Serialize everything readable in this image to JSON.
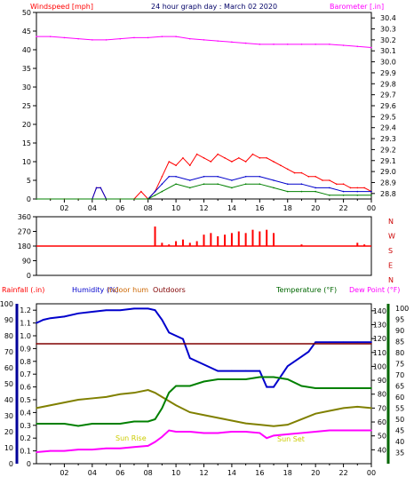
{
  "header": {
    "left": "Windspeed [mph]",
    "center": "24 hour graph day : March 02 2020",
    "right": "Barometer [.in]"
  },
  "bottom_header": {
    "rainfall": "Rainfall (.in)",
    "humidity": "Humidity (%)",
    "indoor": "Indoor hum",
    "outdoors": "Outdoors",
    "temperature": "Temperature (°F)",
    "dewpoint": "Dew Point (°F)"
  },
  "annotations": {
    "sunrise": "Sun Rise",
    "sunset": "Sun Set"
  },
  "colors": {
    "wind": "#ff0000",
    "gust": "#0000cc",
    "avgwind": "#008000",
    "barometer": "#ff00ff",
    "direction": "#ff0000",
    "humidity": "#0000cc",
    "indoor": "#800000",
    "temperature": "#808000",
    "dewpoint": "#008000",
    "rain": "#ff00ff",
    "grid": "#000000"
  },
  "chart_data": [
    {
      "type": "line",
      "name": "wind-barometer",
      "xlabel": "",
      "x_ticks": [
        "02",
        "04",
        "06",
        "08",
        "10",
        "12",
        "14",
        "16",
        "18",
        "20",
        "22",
        "00"
      ],
      "y_left": {
        "label": "Windspeed [mph]",
        "ticks": [
          0,
          5,
          10,
          15,
          20,
          25,
          30,
          35,
          40,
          45,
          50
        ],
        "range": [
          0,
          50
        ]
      },
      "y_right": {
        "label": "Barometer [.in]",
        "ticks": [
          28.8,
          28.9,
          29.0,
          29.1,
          29.2,
          29.3,
          29.4,
          29.5,
          29.6,
          29.7,
          29.8,
          29.9,
          30.0,
          30.1,
          30.2,
          30.3,
          30.4
        ],
        "range": [
          28.75,
          30.45
        ]
      },
      "series": [
        {
          "name": "Windspeed",
          "hours": [
            0,
            1,
            2,
            3,
            4,
            4.3,
            4.6,
            5,
            6,
            7,
            7.5,
            8,
            8.5,
            9,
            9.5,
            10,
            10.5,
            11,
            11.5,
            12,
            12.5,
            13,
            13.5,
            14,
            14.5,
            15,
            15.5,
            16,
            16.5,
            17,
            17.5,
            18,
            18.5,
            19,
            19.5,
            20,
            20.5,
            21,
            21.5,
            22,
            22.5,
            23,
            23.5,
            24
          ],
          "values": [
            0,
            0,
            0,
            0,
            0,
            3,
            3,
            0,
            0,
            0,
            2,
            0,
            2,
            6,
            10,
            9,
            11,
            9,
            12,
            11,
            10,
            12,
            11,
            10,
            11,
            10,
            12,
            11,
            11,
            10,
            9,
            8,
            7,
            7,
            6,
            6,
            5,
            5,
            4,
            4,
            3,
            3,
            3,
            2
          ]
        },
        {
          "name": "Gust",
          "hours": [
            0,
            4,
            4.3,
            4.6,
            5,
            8,
            8.5,
            9,
            9.5,
            10,
            11,
            12,
            13,
            14,
            15,
            16,
            17,
            18,
            19,
            20,
            21,
            22,
            23,
            24
          ],
          "values": [
            0,
            0,
            3,
            3,
            0,
            0,
            2,
            4,
            6,
            6,
            5,
            6,
            6,
            5,
            6,
            6,
            5,
            4,
            4,
            3,
            3,
            2,
            2,
            2
          ]
        },
        {
          "name": "Average",
          "hours": [
            0,
            8,
            8.5,
            9,
            10,
            11,
            12,
            13,
            14,
            15,
            16,
            17,
            18,
            19,
            20,
            21,
            22,
            23,
            24
          ],
          "values": [
            0,
            0,
            1,
            2,
            4,
            3,
            4,
            4,
            3,
            4,
            4,
            3,
            2,
            2,
            2,
            1,
            1,
            1,
            1
          ]
        },
        {
          "name": "Barometer",
          "hours": [
            0,
            1,
            2,
            3,
            4,
            5,
            6,
            7,
            8,
            9,
            10,
            11,
            12,
            13,
            14,
            15,
            16,
            17,
            18,
            19,
            20,
            21,
            22,
            23,
            24
          ],
          "values": [
            30.23,
            30.23,
            30.22,
            30.21,
            30.2,
            30.2,
            30.21,
            30.22,
            30.22,
            30.23,
            30.23,
            30.21,
            30.2,
            30.19,
            30.18,
            30.17,
            30.16,
            30.16,
            30.16,
            30.16,
            30.16,
            30.16,
            30.15,
            30.14,
            30.13
          ]
        }
      ]
    },
    {
      "type": "scatter",
      "name": "wind-direction",
      "y_left": {
        "ticks": [
          0,
          90,
          180,
          270,
          360
        ],
        "range": [
          0,
          360
        ]
      },
      "y_right": {
        "labels": [
          "N",
          "W",
          "S",
          "E",
          "N"
        ]
      },
      "baseline": 180,
      "hours": [
        8.5,
        9,
        9.5,
        10,
        10.5,
        11,
        11.5,
        12,
        12.5,
        13,
        13.5,
        14,
        14.5,
        15,
        15.5,
        16,
        16.5,
        17,
        19,
        23,
        23.5
      ],
      "values": [
        300,
        200,
        190,
        210,
        220,
        200,
        210,
        250,
        260,
        240,
        250,
        260,
        270,
        260,
        280,
        270,
        280,
        260,
        190,
        200,
        190
      ]
    },
    {
      "type": "line",
      "name": "temperature-humidity-rain",
      "x_ticks": [
        "02",
        "04",
        "06",
        "08",
        "10",
        "12",
        "14",
        "16",
        "18",
        "20",
        "22",
        "00"
      ],
      "y_left_rain": {
        "label": "Rainfall (.in)",
        "ticks": [
          0,
          0.1,
          0.2,
          0.3,
          0.4,
          0.5,
          0.6,
          0.7,
          0.8,
          0.9,
          1.0,
          1.1,
          1.2
        ],
        "range": [
          0,
          1.25
        ]
      },
      "y_left_humidity": {
        "label": "Humidity (%)",
        "ticks": [
          0,
          10,
          20,
          30,
          40,
          50,
          60,
          70,
          80,
          90,
          100
        ],
        "range": [
          0,
          100
        ]
      },
      "y_right_temp": {
        "label": "Temperature (°F)",
        "ticks": [
          40,
          50,
          60,
          70,
          80,
          90,
          100,
          110,
          120,
          130,
          140
        ],
        "range": [
          30,
          145
        ]
      },
      "y_right_dew": {
        "label": "Dew Point (°F)",
        "ticks": [
          35,
          40,
          45,
          50,
          55,
          60,
          65,
          70,
          75,
          80,
          85,
          90,
          95,
          100
        ],
        "range": [
          30,
          102
        ]
      },
      "series": [
        {
          "name": "Humidity",
          "hours": [
            0,
            0.5,
            1,
            2,
            3,
            4,
            5,
            6,
            7,
            8,
            8.5,
            9,
            9.5,
            10,
            10.5,
            11,
            12,
            13,
            14,
            15,
            16,
            16.5,
            17,
            18,
            19,
            19.5,
            20,
            21,
            22,
            23,
            24
          ],
          "values": [
            88,
            90,
            91,
            92,
            94,
            95,
            96,
            96,
            97,
            97,
            96,
            90,
            82,
            80,
            78,
            66,
            62,
            58,
            58,
            58,
            58,
            48,
            48,
            61,
            67,
            70,
            76,
            76,
            76,
            76,
            76
          ]
        },
        {
          "name": "Indoor",
          "hours": [
            0,
            24
          ],
          "values": [
            75,
            75
          ]
        },
        {
          "name": "Temperature",
          "hours": [
            0,
            1,
            2,
            3,
            4,
            5,
            6,
            7,
            8,
            8.5,
            9,
            10,
            11,
            12,
            13,
            14,
            15,
            16,
            17,
            18,
            19,
            20,
            21,
            22,
            23,
            24
          ],
          "values": [
            70,
            72,
            74,
            76,
            77,
            78,
            80,
            81,
            83,
            81,
            78,
            72,
            67,
            65,
            63,
            61,
            59,
            58,
            57,
            58,
            62,
            66,
            68,
            70,
            71,
            70
          ]
        },
        {
          "name": "Dew Point",
          "hours": [
            0,
            1,
            2,
            3,
            4,
            5,
            6,
            7,
            8,
            8.5,
            9,
            9.5,
            10,
            11,
            12,
            13,
            14,
            15,
            16,
            17,
            18,
            19,
            20,
            21,
            22,
            23,
            24
          ],
          "values": [
            48,
            48,
            48,
            47,
            48,
            48,
            48,
            49,
            49,
            50,
            55,
            62,
            65,
            65,
            67,
            68,
            68,
            68,
            69,
            69,
            68,
            65,
            64,
            64,
            64,
            64,
            64
          ]
        },
        {
          "name": "Rainfall",
          "hours": [
            0,
            1,
            2,
            3,
            4,
            5,
            6,
            7,
            8,
            8.5,
            9,
            9.5,
            10,
            11,
            12,
            13,
            14,
            15,
            16,
            16.5,
            17,
            18,
            19,
            20,
            21,
            22,
            23,
            24
          ],
          "values": [
            0.09,
            0.1,
            0.1,
            0.11,
            0.11,
            0.12,
            0.12,
            0.13,
            0.14,
            0.17,
            0.21,
            0.26,
            0.25,
            0.25,
            0.24,
            0.24,
            0.25,
            0.25,
            0.24,
            0.2,
            0.22,
            0.23,
            0.24,
            0.25,
            0.26,
            0.26,
            0.26,
            0.26
          ]
        }
      ]
    }
  ]
}
